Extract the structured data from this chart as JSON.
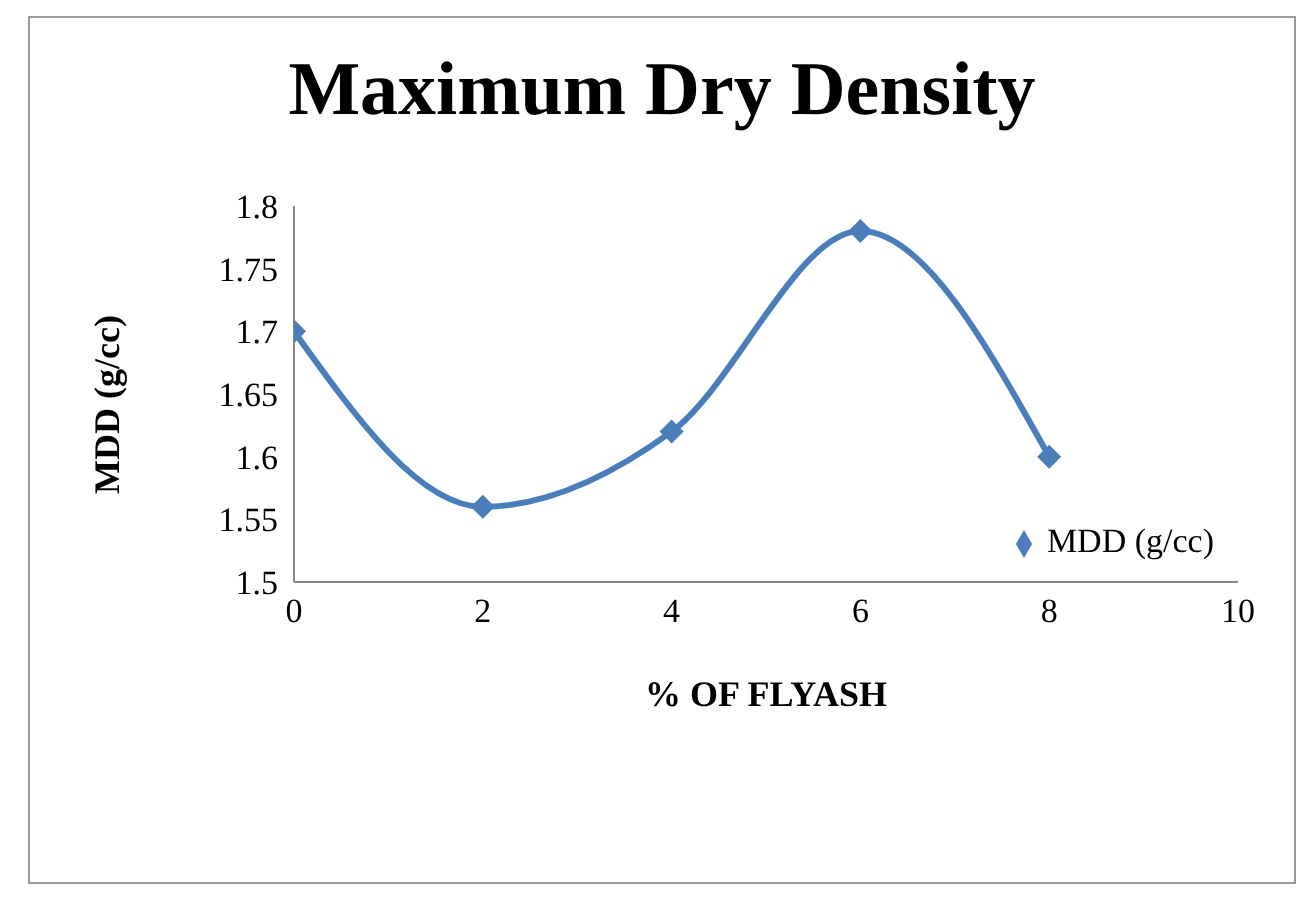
{
  "chart_data": {
    "type": "line",
    "title": "Maximum Dry Density",
    "xlabel": "% OF FLYASH",
    "ylabel": "MDD (g/cc)",
    "x": [
      0,
      2,
      4,
      6,
      8
    ],
    "series": [
      {
        "name": "MDD (g/cc)",
        "color": "#4a7ebb",
        "values": [
          1.7,
          1.56,
          1.62,
          1.78,
          1.6
        ]
      }
    ],
    "xlim": [
      0,
      10
    ],
    "xticks": [
      0,
      2,
      4,
      6,
      8,
      10
    ],
    "ylim": [
      1.5,
      1.8
    ],
    "yticks": [
      1.5,
      1.55,
      1.6,
      1.65,
      1.7,
      1.75,
      1.8
    ],
    "grid": false,
    "legend": "bottom right",
    "marker": "diamond",
    "line_style": "solid"
  }
}
